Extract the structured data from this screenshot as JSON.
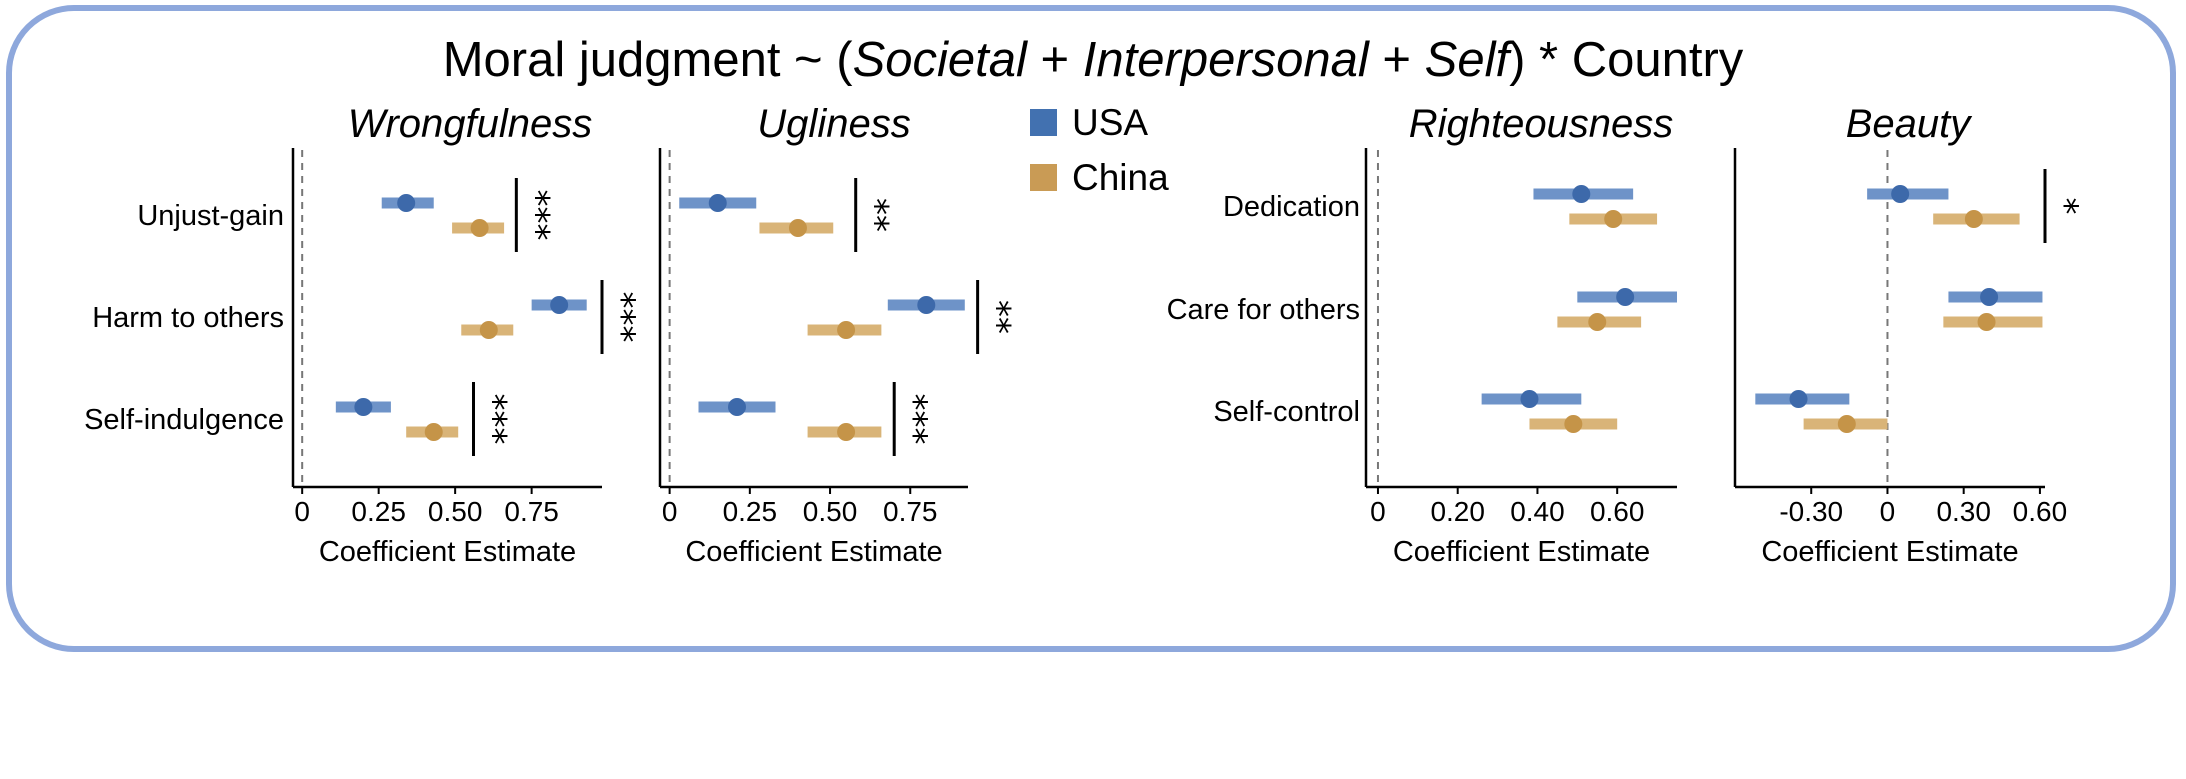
{
  "figure_title": {
    "prefix": "Moral judgment ~ (",
    "term1": "Societal",
    "plus1": " + ",
    "term2": "Interpersonal",
    "plus2": " + ",
    "term3": "Self",
    "suffix": ") * Country"
  },
  "legend": [
    {
      "label": "USA",
      "color": "#4271B0"
    },
    {
      "label": "China",
      "color": "#C99B55"
    }
  ],
  "colors": {
    "usa_bar": "#6E93C8",
    "usa_point": "#3D69AA",
    "china_bar": "#D9B478",
    "china_point": "#C59448",
    "frame": "#8EA8DC"
  },
  "chart_data": [
    {
      "type": "scatter",
      "title": "Wrongfulness",
      "xlabel": "Coefficient Estimate",
      "xlim": [
        -0.03,
        0.98
      ],
      "xticks": [
        {
          "value": 0,
          "label": "0"
        },
        {
          "value": 0.25,
          "label": "0.25"
        },
        {
          "value": 0.5,
          "label": "0.50"
        },
        {
          "value": 0.75,
          "label": "0.75"
        }
      ],
      "categories": [
        "Unjust-gain",
        "Harm to others",
        "Self-indulgence"
      ],
      "show_category_labels": true,
      "reference_line": 0,
      "series": [
        {
          "name": "USA",
          "estimate": [
            0.34,
            0.84,
            0.2
          ],
          "ci_low": [
            0.26,
            0.75,
            0.11
          ],
          "ci_high": [
            0.43,
            0.93,
            0.29
          ]
        },
        {
          "name": "China",
          "estimate": [
            0.58,
            0.61,
            0.43
          ],
          "ci_low": [
            0.49,
            0.52,
            0.34
          ],
          "ci_high": [
            0.66,
            0.69,
            0.51
          ]
        }
      ],
      "significance": [
        {
          "category_index": 0,
          "label": "***",
          "x": 0.7
        },
        {
          "category_index": 1,
          "label": "***",
          "x": 0.98
        },
        {
          "category_index": 2,
          "label": "***",
          "x": 0.56
        }
      ]
    },
    {
      "type": "scatter",
      "title": "Ugliness",
      "xlabel": "Coefficient Estimate",
      "xlim": [
        -0.03,
        0.93
      ],
      "xticks": [
        {
          "value": 0,
          "label": "0"
        },
        {
          "value": 0.25,
          "label": "0.25"
        },
        {
          "value": 0.5,
          "label": "0.50"
        },
        {
          "value": 0.75,
          "label": "0.75"
        }
      ],
      "categories": [
        "Unjust-gain",
        "Harm to others",
        "Self-indulgence"
      ],
      "show_category_labels": false,
      "reference_line": 0,
      "series": [
        {
          "name": "USA",
          "estimate": [
            0.15,
            0.8,
            0.21
          ],
          "ci_low": [
            0.03,
            0.68,
            0.09
          ],
          "ci_high": [
            0.27,
            0.92,
            0.33
          ]
        },
        {
          "name": "China",
          "estimate": [
            0.4,
            0.55,
            0.55
          ],
          "ci_low": [
            0.28,
            0.43,
            0.43
          ],
          "ci_high": [
            0.51,
            0.66,
            0.66
          ]
        }
      ],
      "significance": [
        {
          "category_index": 0,
          "label": "**",
          "x": 0.58
        },
        {
          "category_index": 1,
          "label": "**",
          "x": 0.96
        },
        {
          "category_index": 2,
          "label": "***",
          "x": 0.7
        }
      ]
    },
    {
      "type": "scatter",
      "title": "Righteousness",
      "xlabel": "Coefficient Estimate",
      "xlim": [
        -0.03,
        0.75
      ],
      "xticks": [
        {
          "value": 0,
          "label": "0"
        },
        {
          "value": 0.2,
          "label": "0.20"
        },
        {
          "value": 0.4,
          "label": "0.40"
        },
        {
          "value": 0.6,
          "label": "0.60"
        }
      ],
      "categories": [
        "Dedication",
        "Care for others",
        "Self-control"
      ],
      "show_category_labels": true,
      "reference_line": 0,
      "series": [
        {
          "name": "USA",
          "estimate": [
            0.51,
            0.62,
            0.38
          ],
          "ci_low": [
            0.39,
            0.5,
            0.26
          ],
          "ci_high": [
            0.64,
            0.75,
            0.51
          ]
        },
        {
          "name": "China",
          "estimate": [
            0.59,
            0.55,
            0.49
          ],
          "ci_low": [
            0.48,
            0.45,
            0.38
          ],
          "ci_high": [
            0.7,
            0.66,
            0.6
          ]
        }
      ],
      "significance": []
    },
    {
      "type": "scatter",
      "title": "Beauty",
      "xlabel": "Coefficient Estimate",
      "xlim": [
        -0.6,
        0.62
      ],
      "xticks": [
        {
          "value": -0.3,
          "label": "-0.30"
        },
        {
          "value": 0,
          "label": "0"
        },
        {
          "value": 0.3,
          "label": "0.30"
        },
        {
          "value": 0.6,
          "label": "0.60"
        }
      ],
      "categories": [
        "Dedication",
        "Care for others",
        "Self-control"
      ],
      "show_category_labels": false,
      "reference_line": 0,
      "series": [
        {
          "name": "USA",
          "estimate": [
            0.05,
            0.4,
            -0.35
          ],
          "ci_low": [
            -0.08,
            0.24,
            -0.52
          ],
          "ci_high": [
            0.24,
            0.61,
            -0.15
          ]
        },
        {
          "name": "China",
          "estimate": [
            0.34,
            0.39,
            -0.16
          ],
          "ci_low": [
            0.18,
            0.22,
            -0.33
          ],
          "ci_high": [
            0.52,
            0.61,
            0.0
          ]
        }
      ],
      "significance": [
        {
          "category_index": 0,
          "label": "*",
          "x": 0.62
        }
      ]
    }
  ]
}
